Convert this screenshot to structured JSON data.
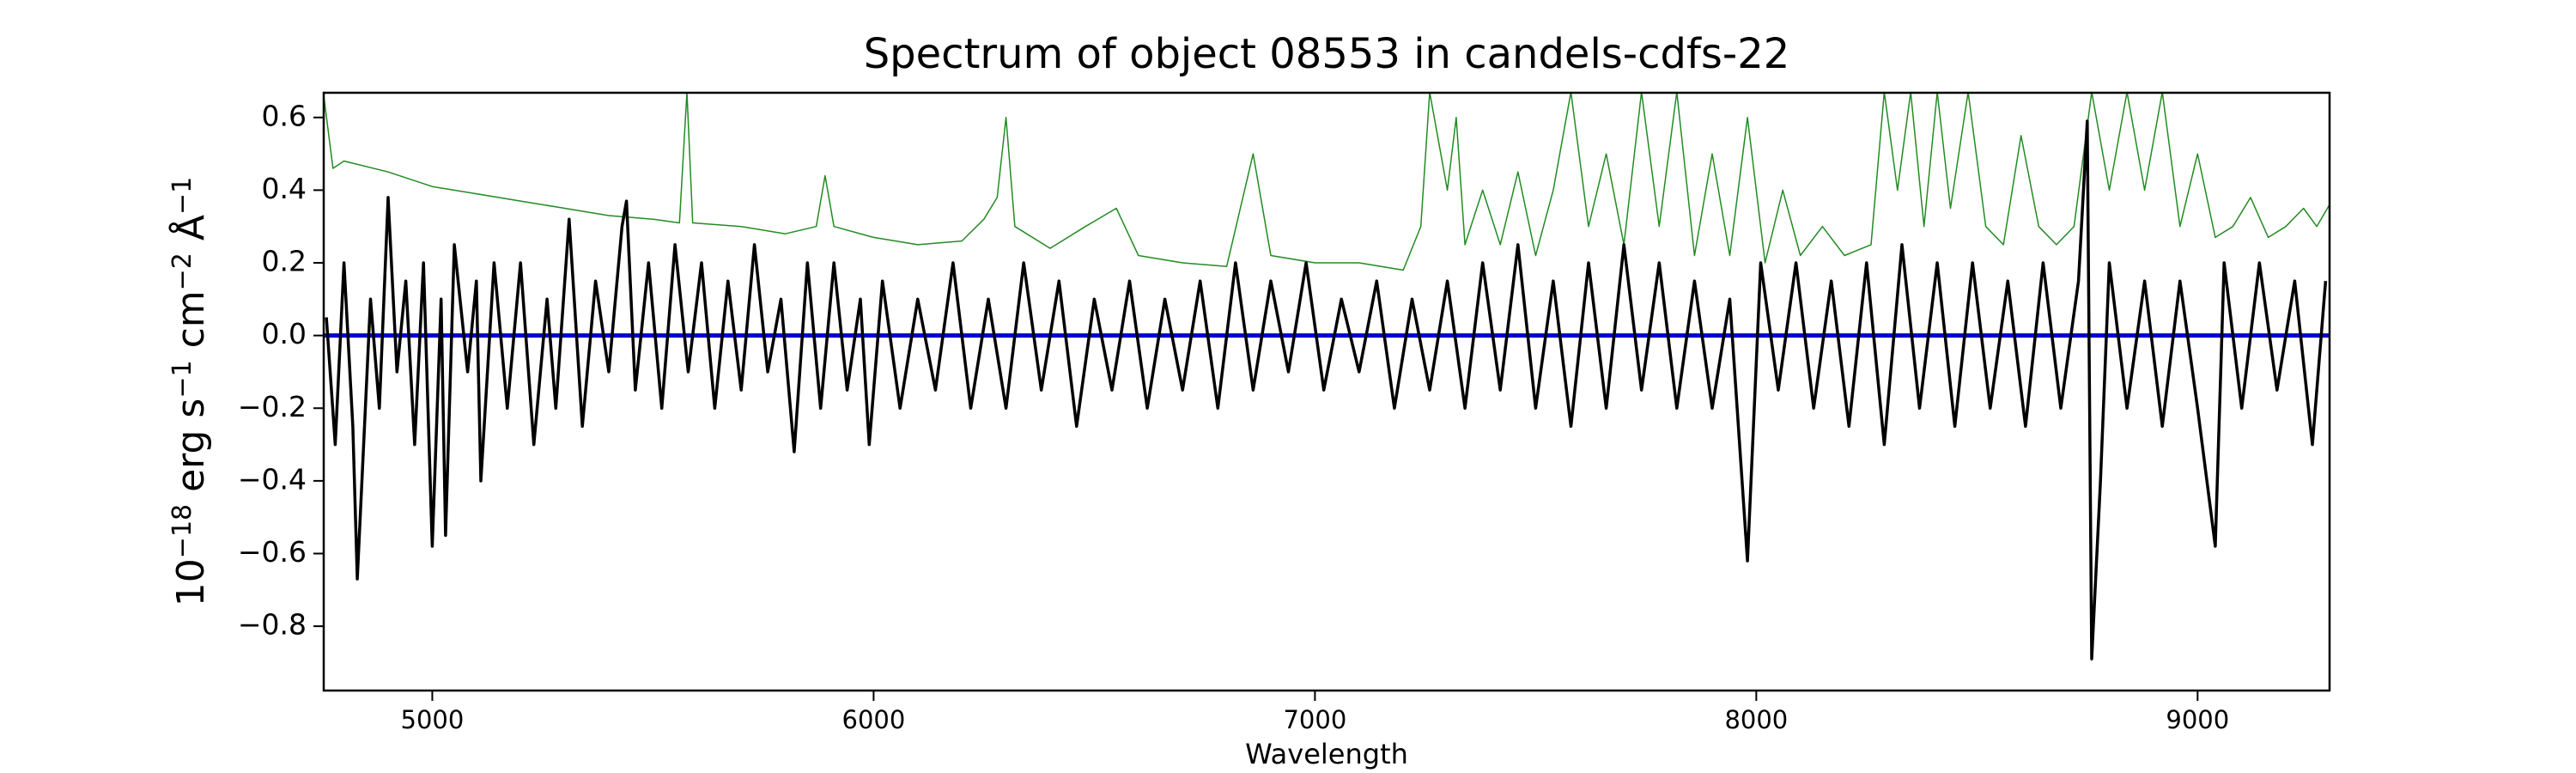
{
  "chart_data": {
    "type": "line",
    "title": "Spectrum of object 08553 in candels-cdfs-22",
    "xlabel": "Wavelength",
    "ylabel": [
      "10",
      "−18",
      " erg s",
      "−1",
      " cm",
      "−2",
      " Å",
      "−1"
    ],
    "xlim": [
      4754,
      9299
    ],
    "ylim": [
      -0.977,
      0.668
    ],
    "xticks": [
      5000,
      6000,
      7000,
      8000,
      9000
    ],
    "yticks": [
      {
        "value": -0.8,
        "label": "−0.8"
      },
      {
        "value": -0.6,
        "label": "−0.6"
      },
      {
        "value": -0.4,
        "label": "−0.4"
      },
      {
        "value": -0.2,
        "label": "−0.2"
      },
      {
        "value": 0,
        "label": "0.0"
      },
      0.2,
      0.4,
      0.6
    ],
    "grid": false,
    "series": [
      {
        "color": "#228b22",
        "width": 1.5,
        "x": [
          4754,
          4775,
          4800,
          4900,
          5000,
          5100,
          5200,
          5300,
          5400,
          5500,
          5560,
          5577,
          5590,
          5700,
          5800,
          5870,
          5890,
          5910,
          6000,
          6100,
          6200,
          6250,
          6280,
          6300,
          6320,
          6400,
          6480,
          6550,
          6600,
          6700,
          6800,
          6860,
          6900,
          7000,
          7100,
          7200,
          7240,
          7260,
          7300,
          7320,
          7340,
          7380,
          7420,
          7460,
          7500,
          7540,
          7580,
          7620,
          7660,
          7700,
          7740,
          7780,
          7820,
          7860,
          7900,
          7940,
          7980,
          8020,
          8060,
          8100,
          8150,
          8200,
          8260,
          8290,
          8320,
          8350,
          8380,
          8410,
          8440,
          8480,
          8520,
          8560,
          8600,
          8640,
          8680,
          8720,
          8760,
          8800,
          8840,
          8880,
          8920,
          8960,
          9000,
          9040,
          9080,
          9120,
          9160,
          9200,
          9240,
          9270,
          9299
        ],
        "values": [
          0.66,
          0.46,
          0.48,
          0.45,
          0.41,
          0.39,
          0.37,
          0.35,
          0.33,
          0.32,
          0.31,
          0.67,
          0.31,
          0.3,
          0.28,
          0.3,
          0.44,
          0.3,
          0.27,
          0.25,
          0.26,
          0.32,
          0.38,
          0.6,
          0.3,
          0.24,
          0.3,
          0.35,
          0.22,
          0.2,
          0.19,
          0.5,
          0.22,
          0.2,
          0.2,
          0.18,
          0.3,
          0.67,
          0.4,
          0.6,
          0.25,
          0.4,
          0.25,
          0.45,
          0.22,
          0.4,
          0.67,
          0.3,
          0.5,
          0.25,
          0.67,
          0.3,
          0.67,
          0.22,
          0.5,
          0.22,
          0.6,
          0.2,
          0.4,
          0.22,
          0.3,
          0.22,
          0.25,
          0.67,
          0.4,
          0.67,
          0.3,
          0.67,
          0.35,
          0.67,
          0.3,
          0.25,
          0.55,
          0.3,
          0.25,
          0.3,
          0.67,
          0.4,
          0.67,
          0.4,
          0.67,
          0.3,
          0.5,
          0.27,
          0.3,
          0.38,
          0.27,
          0.3,
          0.35,
          0.3,
          0.36
        ]
      },
      {
        "color": "#0000cd",
        "width": 5,
        "x": [
          4754,
          9299
        ],
        "values": [
          0,
          0
        ]
      },
      {
        "color": "#000000",
        "width": 3.5,
        "x": [
          4760,
          4780,
          4800,
          4820,
          4830,
          4860,
          4880,
          4900,
          4920,
          4940,
          4960,
          4980,
          5000,
          5020,
          5030,
          5050,
          5080,
          5100,
          5110,
          5140,
          5170,
          5200,
          5230,
          5260,
          5280,
          5310,
          5340,
          5370,
          5400,
          5430,
          5440,
          5460,
          5490,
          5520,
          5550,
          5580,
          5610,
          5640,
          5670,
          5700,
          5730,
          5760,
          5790,
          5820,
          5850,
          5880,
          5910,
          5940,
          5970,
          5990,
          6020,
          6060,
          6100,
          6140,
          6180,
          6220,
          6260,
          6300,
          6340,
          6380,
          6420,
          6460,
          6500,
          6540,
          6580,
          6620,
          6660,
          6700,
          6740,
          6780,
          6820,
          6860,
          6900,
          6940,
          6980,
          7020,
          7060,
          7100,
          7140,
          7180,
          7220,
          7260,
          7300,
          7340,
          7380,
          7420,
          7460,
          7500,
          7540,
          7580,
          7620,
          7660,
          7700,
          7740,
          7780,
          7820,
          7860,
          7900,
          7940,
          7980,
          8010,
          8050,
          8090,
          8130,
          8170,
          8210,
          8250,
          8290,
          8330,
          8370,
          8410,
          8450,
          8490,
          8530,
          8570,
          8610,
          8650,
          8690,
          8730,
          8750,
          8760,
          8780,
          8800,
          8840,
          8880,
          8920,
          8960,
          9000,
          9040,
          9060,
          9100,
          9140,
          9180,
          9220,
          9260,
          9290
        ],
        "values": [
          0.05,
          -0.3,
          0.2,
          -0.25,
          -0.67,
          0.1,
          -0.2,
          0.38,
          -0.1,
          0.15,
          -0.3,
          0.2,
          -0.58,
          0.1,
          -0.55,
          0.25,
          -0.1,
          0.15,
          -0.4,
          0.2,
          -0.2,
          0.2,
          -0.3,
          0.1,
          -0.2,
          0.32,
          -0.25,
          0.15,
          -0.1,
          0.3,
          0.37,
          -0.15,
          0.2,
          -0.2,
          0.25,
          -0.1,
          0.2,
          -0.2,
          0.15,
          -0.15,
          0.25,
          -0.1,
          0.1,
          -0.32,
          0.2,
          -0.2,
          0.2,
          -0.15,
          0.1,
          -0.3,
          0.15,
          -0.2,
          0.1,
          -0.15,
          0.2,
          -0.2,
          0.1,
          -0.2,
          0.2,
          -0.15,
          0.15,
          -0.25,
          0.1,
          -0.15,
          0.15,
          -0.2,
          0.1,
          -0.15,
          0.15,
          -0.2,
          0.2,
          -0.15,
          0.15,
          -0.1,
          0.2,
          -0.15,
          0.1,
          -0.1,
          0.15,
          -0.2,
          0.1,
          -0.15,
          0.15,
          -0.2,
          0.2,
          -0.15,
          0.25,
          -0.2,
          0.15,
          -0.25,
          0.2,
          -0.2,
          0.25,
          -0.15,
          0.2,
          -0.2,
          0.15,
          -0.2,
          0.1,
          -0.62,
          0.2,
          -0.15,
          0.2,
          -0.2,
          0.15,
          -0.25,
          0.2,
          -0.3,
          0.25,
          -0.2,
          0.2,
          -0.25,
          0.2,
          -0.2,
          0.15,
          -0.25,
          0.2,
          -0.2,
          0.15,
          0.59,
          -0.89,
          -0.4,
          0.2,
          -0.2,
          0.15,
          -0.25,
          0.15,
          -0.2,
          -0.58,
          0.2,
          -0.2,
          0.2,
          -0.15,
          0.15,
          -0.3,
          0.15
        ]
      }
    ]
  }
}
